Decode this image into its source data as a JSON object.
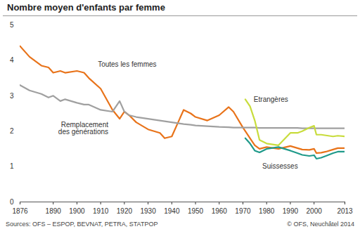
{
  "chart_data": {
    "type": "line",
    "title": "Nombre moyen d'enfants par femme",
    "source": "Sources: OFS – ESPOP, BEVNAT, PETRA, STATPOP",
    "copyright": "© OFS, Neuchâtel 2014",
    "x": [
      1876,
      1880,
      1885,
      1888,
      1890,
      1893,
      1895,
      1900,
      1903,
      1905,
      1910,
      1915,
      1918,
      1920,
      1922,
      1925,
      1930,
      1935,
      1937,
      1940,
      1943,
      1945,
      1948,
      1950,
      1955,
      1960,
      1964,
      1966,
      1970,
      1971,
      1973,
      1975,
      1977,
      1980,
      1985,
      1990,
      1993,
      1995,
      1998,
      2000,
      2001,
      2003,
      2005,
      2008,
      2010,
      2013
    ],
    "series": [
      {
        "name": "Toutes les femmes",
        "color": "#e8731a",
        "values": [
          4.4,
          4.1,
          3.85,
          3.8,
          3.65,
          3.7,
          3.65,
          3.7,
          3.65,
          3.5,
          3.2,
          2.6,
          2.35,
          2.55,
          2.45,
          2.25,
          2.05,
          1.95,
          1.8,
          1.85,
          2.3,
          2.6,
          2.5,
          2.4,
          2.3,
          2.45,
          2.68,
          2.55,
          2.1,
          2.0,
          1.8,
          1.6,
          1.5,
          1.55,
          1.5,
          1.58,
          1.52,
          1.48,
          1.47,
          1.5,
          1.38,
          1.39,
          1.42,
          1.48,
          1.52,
          1.52
        ]
      },
      {
        "name": "Remplacement\ndes générations",
        "color": "#a0a0a0",
        "values": [
          3.3,
          3.15,
          3.05,
          2.95,
          3.0,
          2.85,
          2.9,
          2.8,
          2.75,
          2.75,
          2.6,
          2.55,
          2.85,
          2.55,
          2.45,
          2.4,
          2.35,
          2.3,
          2.28,
          2.25,
          2.22,
          2.2,
          2.18,
          2.16,
          2.14,
          2.12,
          2.11,
          2.1,
          2.1,
          2.1,
          2.1,
          2.1,
          2.09,
          2.09,
          2.09,
          2.09,
          2.09,
          2.08,
          2.08,
          2.08,
          2.08,
          2.08,
          2.08,
          2.08,
          2.08,
          2.08
        ]
      },
      {
        "name": "Etrangères",
        "color": "#c8dc3c",
        "values": [
          null,
          null,
          null,
          null,
          null,
          null,
          null,
          null,
          null,
          null,
          null,
          null,
          null,
          null,
          null,
          null,
          null,
          null,
          null,
          null,
          null,
          null,
          null,
          null,
          null,
          null,
          null,
          null,
          null,
          2.9,
          2.7,
          2.3,
          1.75,
          1.65,
          1.6,
          1.95,
          1.95,
          2.0,
          2.1,
          2.15,
          1.9,
          1.9,
          1.88,
          1.85,
          1.87,
          1.85
        ]
      },
      {
        "name": "Suissesses",
        "color": "#1f9a8a",
        "values": [
          null,
          null,
          null,
          null,
          null,
          null,
          null,
          null,
          null,
          null,
          null,
          null,
          null,
          null,
          null,
          null,
          null,
          null,
          null,
          null,
          null,
          null,
          null,
          null,
          null,
          null,
          null,
          null,
          null,
          1.8,
          1.65,
          1.45,
          1.4,
          1.5,
          1.55,
          1.45,
          1.38,
          1.33,
          1.3,
          1.32,
          1.22,
          1.25,
          1.3,
          1.38,
          1.42,
          1.42
        ]
      }
    ],
    "xlim": [
      1876,
      2013
    ],
    "xticks": [
      1876,
      1890,
      1900,
      1910,
      1920,
      1930,
      1940,
      1950,
      1960,
      1970,
      1980,
      1990,
      2000,
      2013
    ],
    "ylim": [
      0,
      5
    ],
    "yticks": [
      0,
      1,
      2,
      3,
      4,
      5
    ],
    "grid": false
  }
}
